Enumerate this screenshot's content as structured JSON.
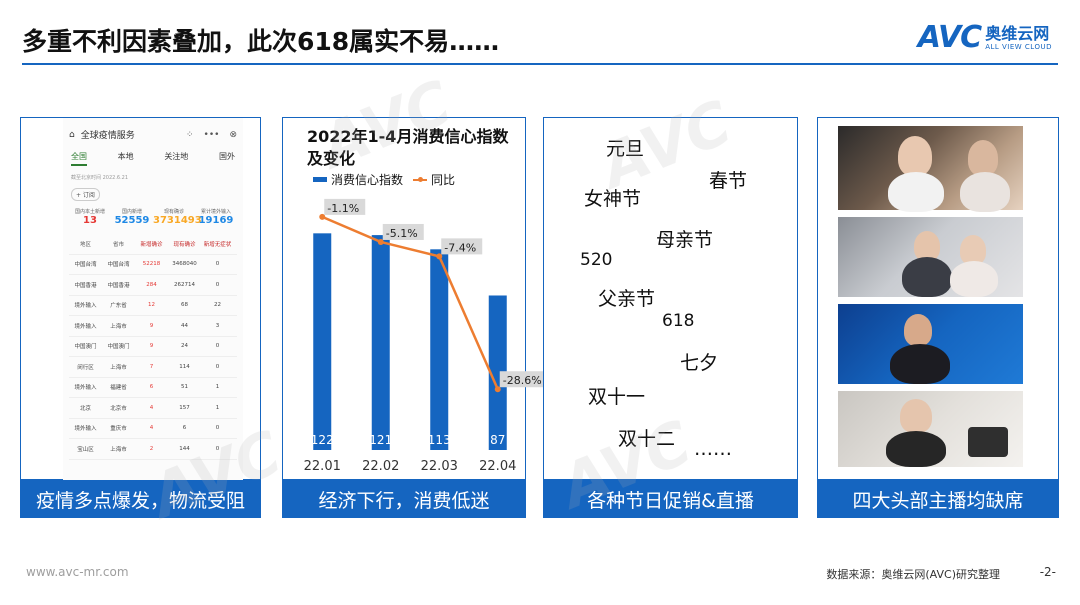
{
  "header": {
    "title": "多重不利因素叠加，此次618属实不易……",
    "logo_avc": "AVC",
    "logo_cn": "奥维云网",
    "logo_en": "ALL VIEW CLOUD"
  },
  "phone": {
    "title": "全球疫情服务",
    "tabs": [
      "全国",
      "本地",
      "关注地",
      "国外"
    ],
    "hint": "截至北京时间 2022.6.21",
    "filter_btn": "+ 订阅",
    "stats": [
      {
        "label": "国内本土新增",
        "value": "13",
        "color": "#e53935"
      },
      {
        "label": "国内新增",
        "value": "52559",
        "color": "#1e88e5"
      },
      {
        "label": "现有确诊",
        "value": "3731493",
        "color": "#f9a825"
      },
      {
        "label": "累计境外输入",
        "value": "19169",
        "color": "#1e88e5"
      }
    ],
    "table_head": [
      "地区",
      "省市",
      "新增确诊",
      "现有确诊",
      "新增无症状"
    ],
    "rows": [
      [
        "中国台湾",
        "中国台湾",
        "52218",
        "3468040",
        "0"
      ],
      [
        "中国香港",
        "中国香港",
        "284",
        "262714",
        "0"
      ],
      [
        "境外输入",
        "广东省",
        "12",
        "68",
        "22"
      ],
      [
        "境外输入",
        "上海市",
        "9",
        "44",
        "3"
      ],
      [
        "中国澳门",
        "中国澳门",
        "9",
        "24",
        "0"
      ],
      [
        "闵行区",
        "上海市",
        "7",
        "114",
        "0"
      ],
      [
        "境外输入",
        "福建省",
        "6",
        "51",
        "1"
      ],
      [
        "北京",
        "北京市",
        "4",
        "157",
        "1"
      ],
      [
        "境外输入",
        "重庆市",
        "4",
        "6",
        "0"
      ],
      [
        "宝山区",
        "上海市",
        "2",
        "144",
        "0"
      ]
    ]
  },
  "captions": [
    "疫情多点爆发，物流受阻",
    "经济下行，消费低迷",
    "各种节日促销&直播",
    "四大头部主播均缺席"
  ],
  "festivals": [
    "元旦",
    "春节",
    "女神节",
    "母亲节",
    "520",
    "父亲节",
    "618",
    "七夕",
    "双十一",
    "双十二",
    "……"
  ],
  "chart_data": {
    "type": "bar",
    "title": "2022年1-4月消费信心指数及变化",
    "categories": [
      "22.01",
      "22.02",
      "22.03",
      "22.04"
    ],
    "series": [
      {
        "name": "消费信心指数",
        "type": "bar",
        "values": [
          122,
          121,
          113,
          87
        ],
        "color": "#1565c0"
      },
      {
        "name": "同比",
        "type": "line",
        "values": [
          -1.1,
          -5.1,
          -7.4,
          -28.6
        ],
        "labels": [
          "-1.1%",
          "-5.1%",
          "-7.4%",
          "-28.6%"
        ],
        "color": "#ed7d31"
      }
    ]
  },
  "footer": {
    "website": "www.avc-mr.com",
    "source": "数据来源：奥维云网(AVC)研究整理",
    "page": "-2-"
  }
}
